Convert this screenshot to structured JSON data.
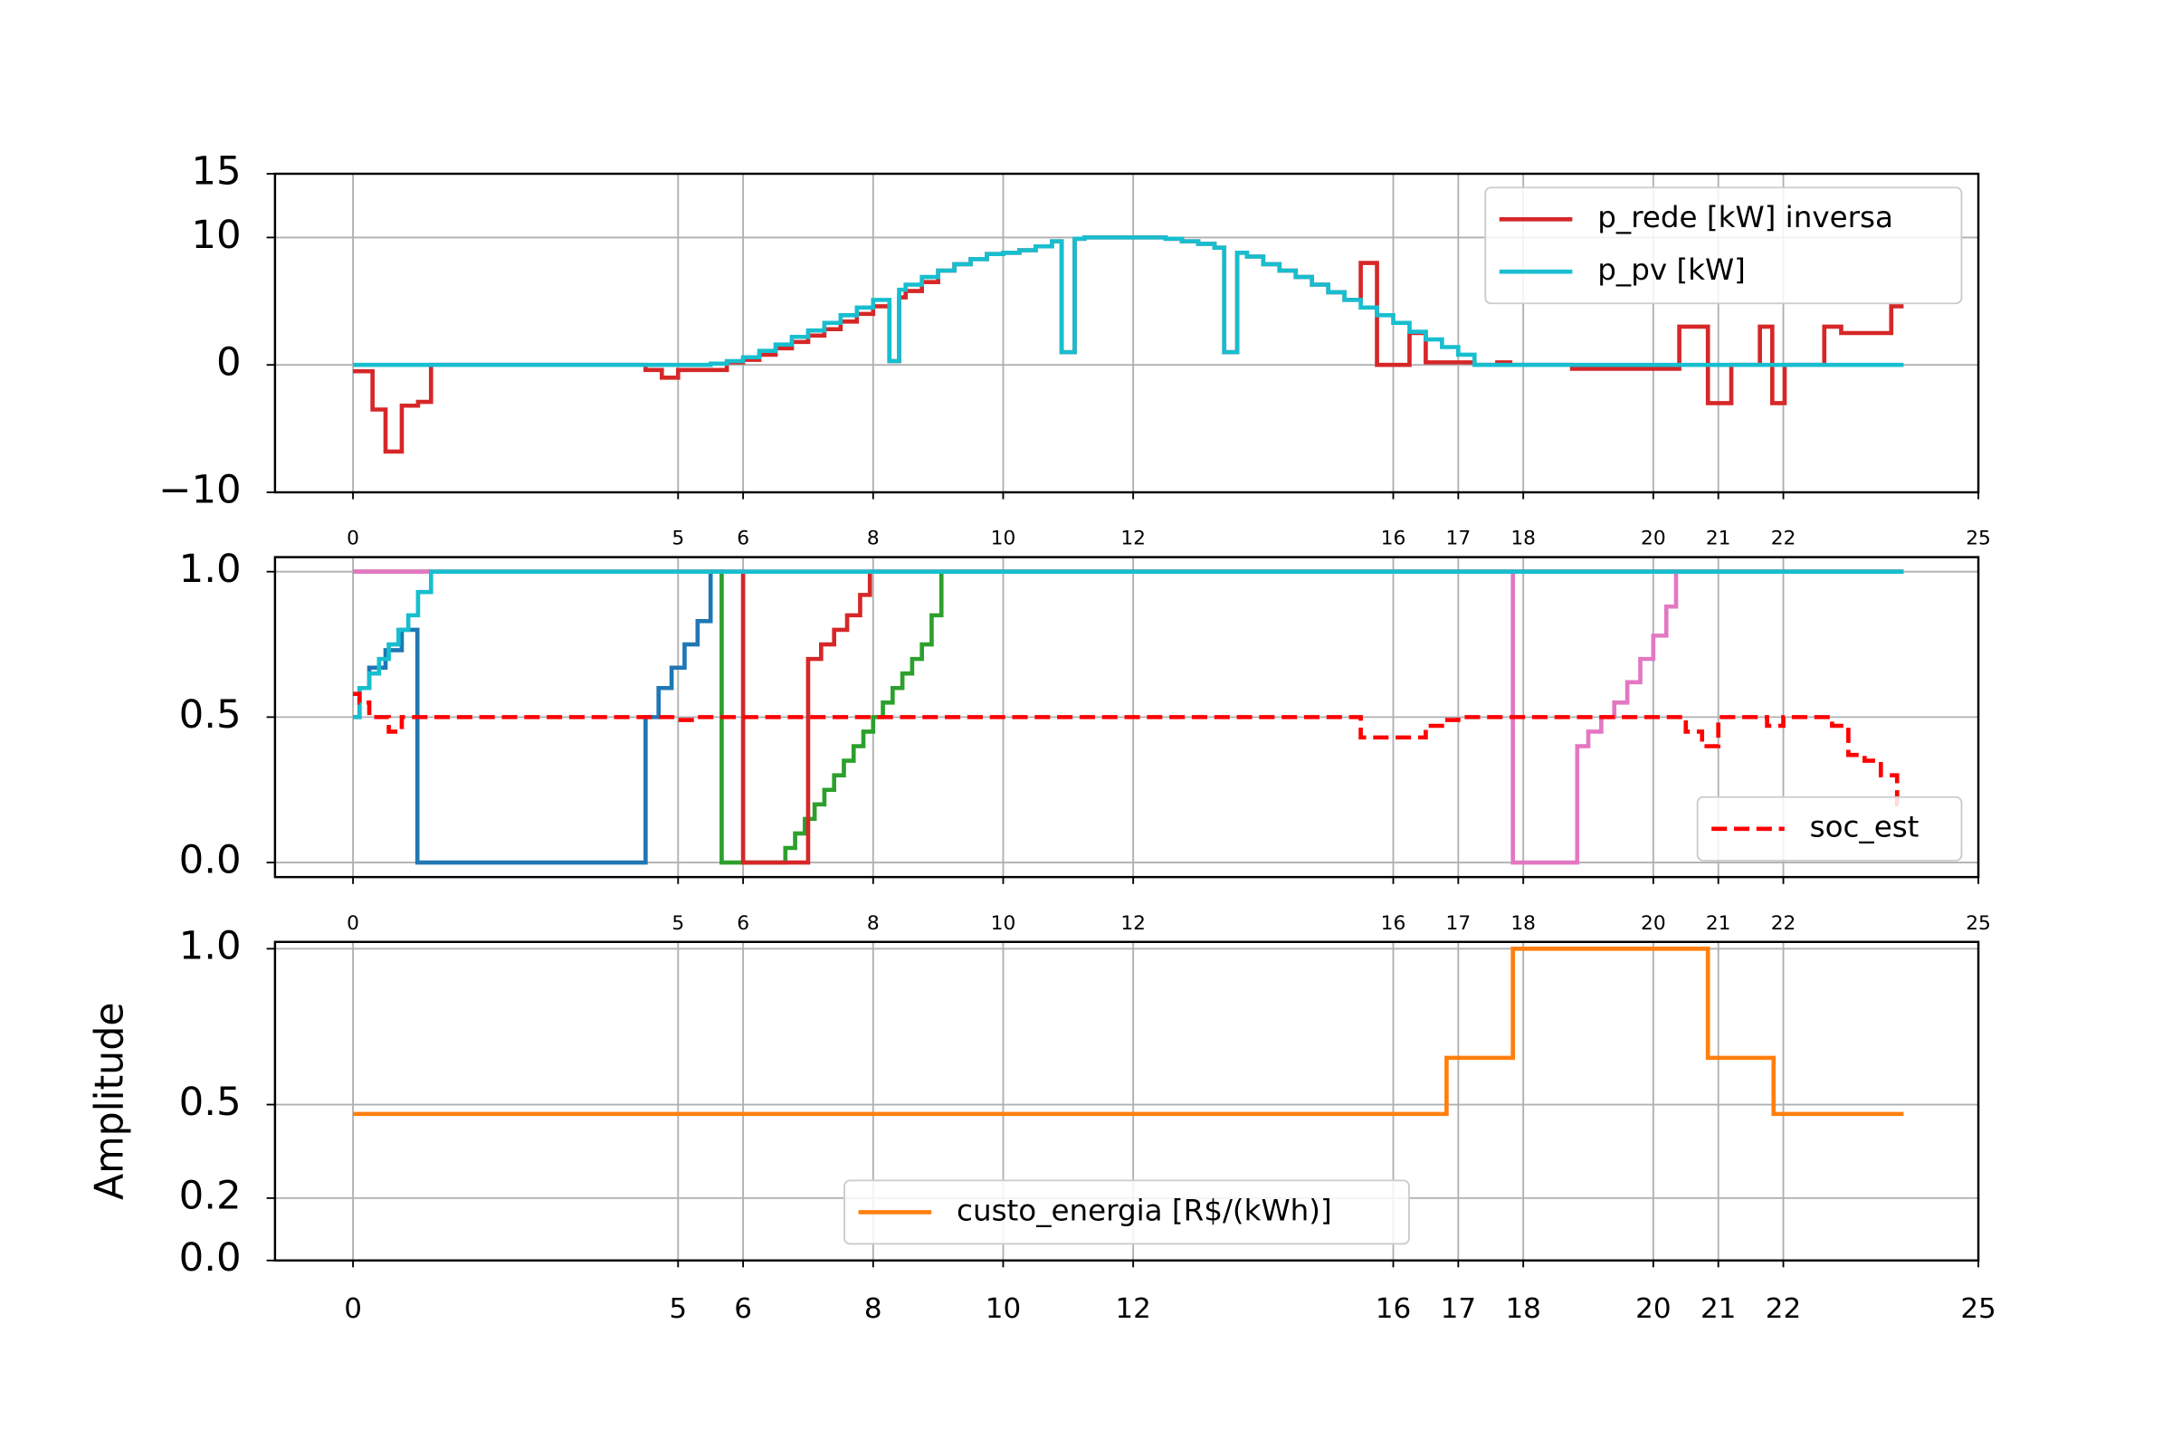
{
  "chart_data": [
    {
      "type": "line",
      "step": "post",
      "grid": true,
      "legend": "upper right",
      "xlim": [
        -1.2,
        25
      ],
      "xticks": [
        0,
        5,
        6,
        8,
        10,
        12,
        16,
        17,
        18,
        20,
        21,
        22,
        25
      ],
      "ylim": [
        -10,
        15
      ],
      "yticks": [
        {
          "value": -10,
          "label": "−10"
        },
        0,
        10,
        15
      ],
      "series": [
        {
          "name": "p_rede [kW] inversa",
          "color": "#d62728",
          "x": [
            0,
            0.3,
            0.5,
            0.75,
            1.0,
            1.2,
            4.5,
            4.75,
            5.0,
            5.75,
            6,
            6.25,
            6.5,
            6.75,
            7,
            7.25,
            7.5,
            7.75,
            8,
            8.25,
            8.4,
            8.5,
            8.75,
            9,
            9.25,
            9.5,
            9.75,
            10,
            10.25,
            10.5,
            10.75,
            10.9,
            11.1,
            11.25,
            11.5,
            11.75,
            12,
            12.25,
            12.5,
            12.75,
            13,
            13.25,
            13.4,
            13.6,
            13.75,
            14,
            14.25,
            14.5,
            14.75,
            15,
            15.25,
            15.5,
            15.75,
            16,
            16.25,
            16.5,
            17.25,
            17.6,
            17.8,
            18.75,
            20.4,
            20.84,
            21.2,
            21.64,
            21.83,
            22.02,
            22.63,
            22.89,
            23.66,
            23.85
          ],
          "values": [
            -0.5,
            -3.5,
            -6.8,
            -3.2,
            -2.9,
            0,
            -0.4,
            -1.0,
            -0.4,
            0.2,
            0.4,
            0.8,
            1.3,
            1.8,
            2.3,
            2.8,
            3.4,
            4.0,
            4.6,
            0.3,
            5.3,
            5.8,
            6.5,
            7.4,
            7.9,
            8.3,
            8.7,
            8.8,
            9.0,
            9.3,
            9.7,
            1.0,
            9.9,
            10,
            10,
            10,
            10,
            10,
            9.9,
            9.7,
            9.5,
            9.2,
            1.0,
            8.8,
            8.5,
            7.9,
            7.4,
            6.9,
            6.3,
            5.7,
            5.1,
            8.0,
            0,
            0,
            2.5,
            0.2,
            0,
            0.2,
            0,
            -0.3,
            3.0,
            -3.0,
            0,
            3.0,
            -3.0,
            0,
            3.0,
            2.5,
            4.6,
            4.6
          ]
        },
        {
          "name": "p_pv [kW]",
          "color": "#17becf",
          "x": [
            0,
            5.5,
            5.75,
            6,
            6.25,
            6.5,
            6.75,
            7,
            7.25,
            7.5,
            7.75,
            8,
            8.25,
            8.4,
            8.5,
            8.75,
            9,
            9.25,
            9.5,
            9.75,
            10,
            10.25,
            10.5,
            10.75,
            10.9,
            11.1,
            11.25,
            11.5,
            11.75,
            12,
            12.25,
            12.5,
            12.75,
            13,
            13.25,
            13.4,
            13.6,
            13.75,
            14,
            14.25,
            14.5,
            14.75,
            15,
            15.25,
            15.5,
            15.75,
            16,
            16.25,
            16.5,
            16.75,
            17,
            17.25,
            23.85
          ],
          "values": [
            0,
            0.1,
            0.3,
            0.6,
            1.1,
            1.6,
            2.2,
            2.7,
            3.3,
            3.9,
            4.5,
            5.1,
            0.3,
            5.9,
            6.3,
            6.9,
            7.4,
            7.9,
            8.3,
            8.7,
            8.8,
            9.0,
            9.3,
            9.7,
            1.0,
            9.9,
            10,
            10,
            10,
            10,
            10,
            9.9,
            9.7,
            9.5,
            9.2,
            1.0,
            8.8,
            8.5,
            7.9,
            7.4,
            6.9,
            6.3,
            5.7,
            5.1,
            4.5,
            3.9,
            3.3,
            2.6,
            2.0,
            1.4,
            0.8,
            0,
            0
          ]
        }
      ]
    },
    {
      "type": "line",
      "step": "post",
      "grid": true,
      "legend": "lower right",
      "xlim": [
        -1.2,
        25
      ],
      "xticks": [
        0,
        5,
        6,
        8,
        10,
        12,
        16,
        17,
        18,
        20,
        21,
        22,
        25
      ],
      "ylim": [
        -0.05,
        1.05
      ],
      "yticks": [
        {
          "value": 0,
          "label": "0.0"
        },
        0.5,
        {
          "value": 1,
          "label": "1.0"
        }
      ],
      "series": [
        {
          "color": "#1f77b4",
          "x": [
            0,
            0.1,
            0.25,
            0.5,
            0.75,
            0.99,
            4.5,
            4.7,
            4.9,
            5.1,
            5.3,
            5.5,
            23.85
          ],
          "values": [
            0.5,
            0.6,
            0.67,
            0.73,
            0.8,
            0,
            0.5,
            0.6,
            0.67,
            0.75,
            0.83,
            1.0,
            1.0
          ]
        },
        {
          "color": "#2ca02c",
          "x": [
            0,
            5.67,
            5.9,
            6.65,
            6.8,
            6.95,
            7.1,
            7.25,
            7.4,
            7.55,
            7.7,
            7.85,
            8.0,
            8.15,
            8.3,
            8.45,
            8.6,
            8.75,
            8.9,
            9.05,
            23.85
          ],
          "values": [
            1,
            0,
            0,
            0.05,
            0.1,
            0.15,
            0.2,
            0.25,
            0.3,
            0.35,
            0.4,
            0.45,
            0.5,
            0.55,
            0.6,
            0.65,
            0.7,
            0.75,
            0.85,
            1,
            1
          ]
        },
        {
          "color": "#d62728",
          "x": [
            0,
            6.0,
            7.0,
            7.2,
            7.4,
            7.6,
            7.8,
            7.95,
            23.85
          ],
          "values": [
            1,
            0,
            0.7,
            0.75,
            0.8,
            0.85,
            0.92,
            1,
            1
          ]
        },
        {
          "color": "#e377c2",
          "x": [
            0,
            17.84,
            18.83,
            19.0,
            19.2,
            19.4,
            19.6,
            19.8,
            20.0,
            20.2,
            20.35,
            23.85
          ],
          "values": [
            1,
            0,
            0.4,
            0.45,
            0.5,
            0.55,
            0.62,
            0.7,
            0.78,
            0.88,
            1,
            1
          ]
        },
        {
          "color": "#17becf",
          "x": [
            0,
            0.1,
            0.25,
            0.4,
            0.55,
            0.7,
            0.85,
            1.0,
            1.2,
            23.85
          ],
          "values": [
            0.5,
            0.6,
            0.65,
            0.7,
            0.75,
            0.8,
            0.85,
            0.93,
            1.0,
            1.0
          ]
        },
        {
          "name": "soc_est",
          "color": "#ff0000",
          "linestyle": "dashed",
          "x": [
            0,
            0.1,
            0.25,
            0.55,
            0.75,
            5.0,
            5.25,
            15.5,
            16.25,
            16.5,
            16.75,
            17.0,
            20.5,
            20.75,
            21.0,
            21.75,
            22.0,
            22.75,
            23.0,
            23.25,
            23.5,
            23.75,
            23.85
          ],
          "values": [
            0.58,
            0.55,
            0.5,
            0.45,
            0.5,
            0.49,
            0.5,
            0.43,
            0.43,
            0.47,
            0.49,
            0.5,
            0.45,
            0.4,
            0.5,
            0.47,
            0.5,
            0.47,
            0.37,
            0.35,
            0.3,
            0.2,
            0.2
          ]
        }
      ]
    },
    {
      "type": "line",
      "step": "post",
      "grid": true,
      "legend": "lower center",
      "ylabel": "Amplitude",
      "xlim": [
        -1.2,
        25
      ],
      "xticks": [
        0,
        5,
        6,
        8,
        10,
        12,
        16,
        17,
        18,
        20,
        21,
        22,
        25
      ],
      "ylim": [
        0,
        1.022
      ],
      "yticks": [
        {
          "value": 0,
          "label": "0.0"
        },
        0.2,
        0.5,
        {
          "value": 1,
          "label": "1.0"
        }
      ],
      "series": [
        {
          "name": "custo_energia [R$/(kWh)]",
          "color": "#ff7f0e",
          "x": [
            0,
            16.82,
            17.84,
            20.84,
            21.85,
            23.85
          ],
          "values": [
            0.47,
            0.65,
            1.0,
            0.65,
            0.47,
            0.47
          ]
        }
      ]
    }
  ]
}
